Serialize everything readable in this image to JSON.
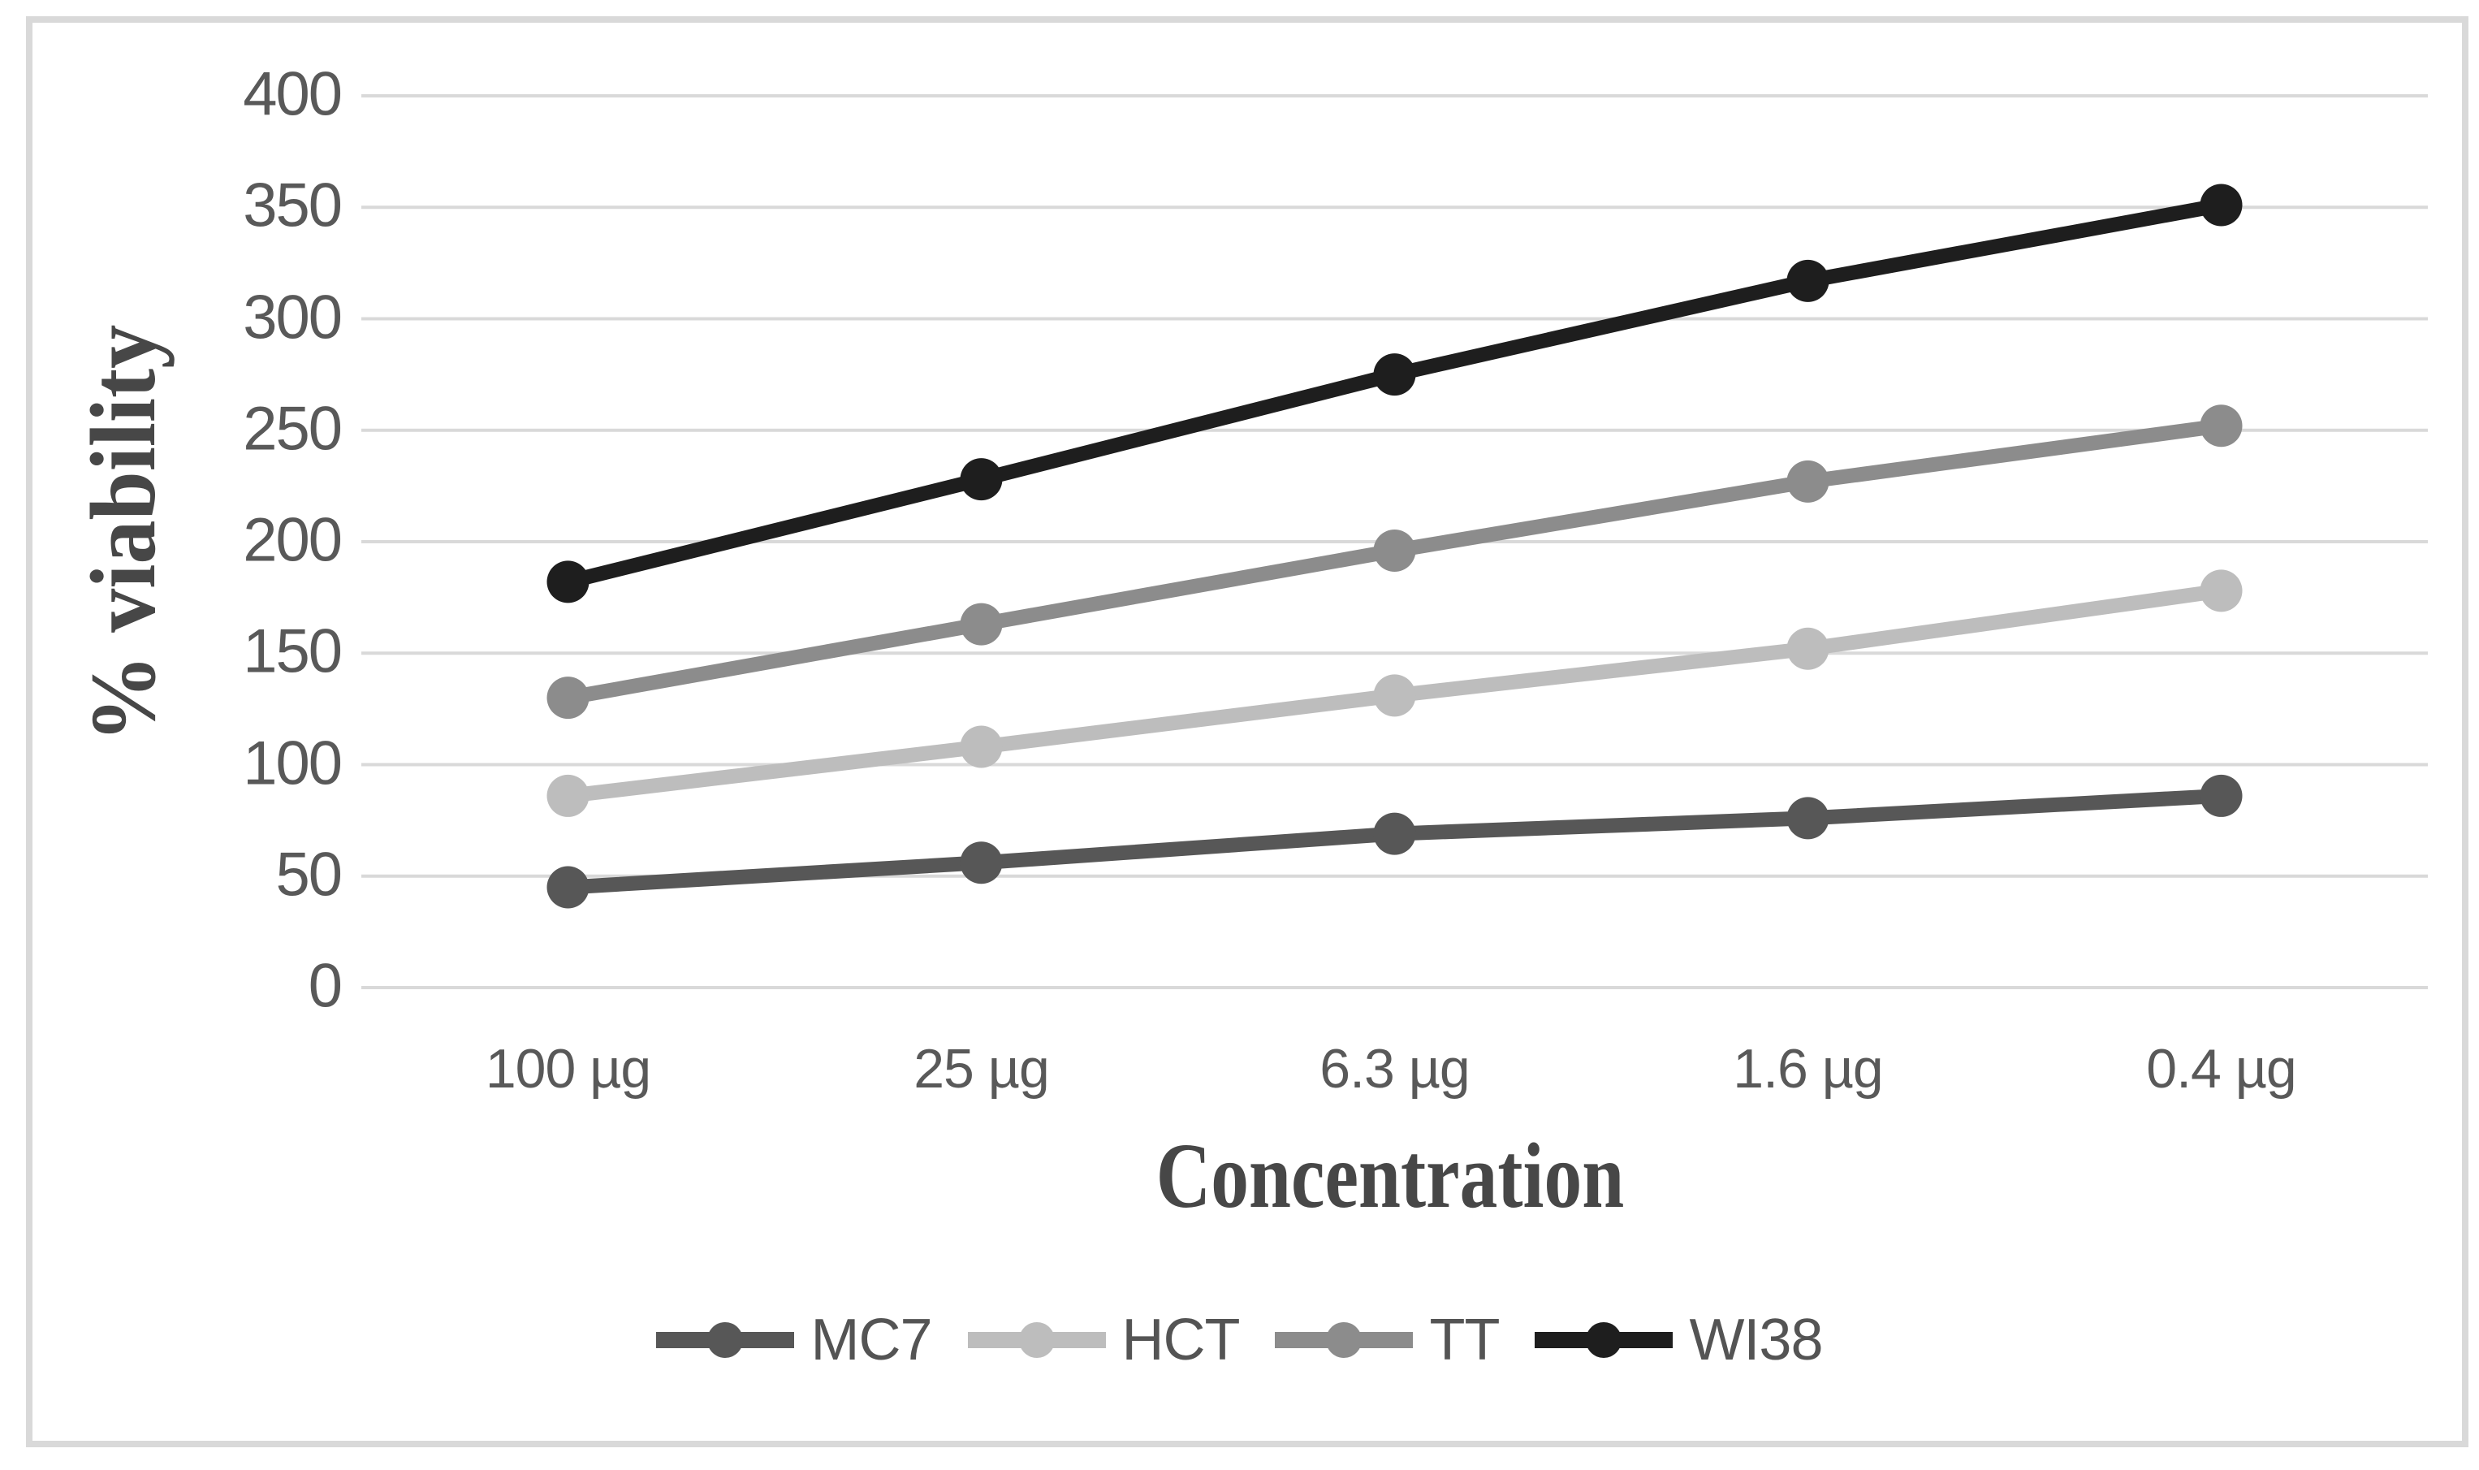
{
  "figure": {
    "background": "#ffffff"
  },
  "frame": {
    "color": "#d9d9d9"
  },
  "axes": {
    "grid_color": "#d9d9d9",
    "tick_text_color": "#595959",
    "title_color": "#474747"
  },
  "chart_data": {
    "type": "line",
    "title": "",
    "xlabel": "Concentration",
    "ylabel": "% viability",
    "categories": [
      "100 µg",
      "25 µg",
      "6.3 µg",
      "1.6 µg",
      "0.4 µg"
    ],
    "series": [
      {
        "name": "MC7",
        "color": "#575757",
        "values": [
          45,
          56,
          69,
          76,
          86
        ]
      },
      {
        "name": "HCT",
        "color": "#bdbdbd",
        "values": [
          86,
          108,
          131,
          152,
          178
        ]
      },
      {
        "name": "TT",
        "color": "#8c8c8c",
        "values": [
          130,
          163,
          196,
          227,
          252
        ]
      },
      {
        "name": "WI38",
        "color": "#1e1e1e",
        "values": [
          182,
          228,
          275,
          317,
          351
        ]
      }
    ],
    "ylim": [
      0,
      400
    ],
    "yticks": [
      0,
      50,
      100,
      150,
      200,
      250,
      300,
      350,
      400
    ],
    "grid": true,
    "legend_position": "bottom",
    "marker": "circle"
  }
}
